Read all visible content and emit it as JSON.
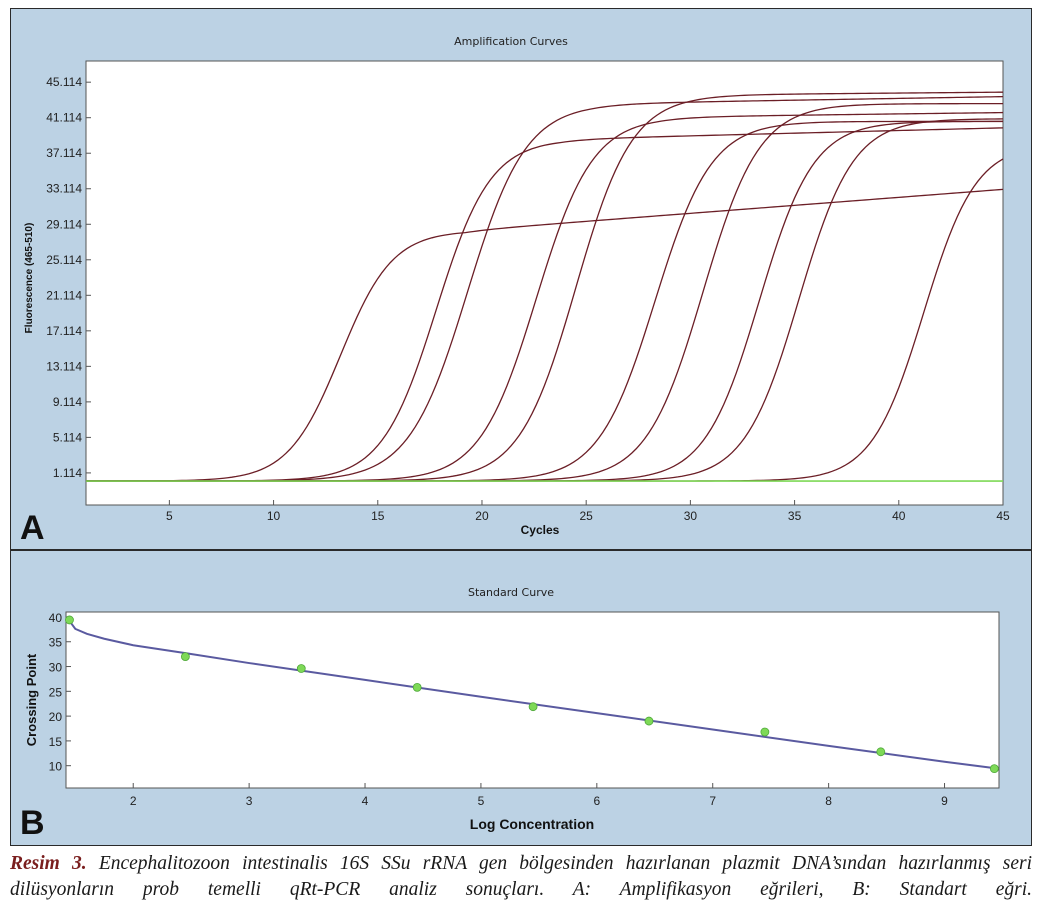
{
  "panels": [
    {
      "letter": "A",
      "chart_data": {
        "type": "line",
        "title": "Amplification Curves",
        "xlabel": "Cycles",
        "ylabel": "Fluorescence (465-510)",
        "xlim": [
          1,
          45
        ],
        "ylim": [
          -2.5,
          47.5
        ],
        "x_ticks": [
          5,
          10,
          15,
          20,
          25,
          30,
          35,
          40,
          45
        ],
        "y_ticks": [
          "1.114",
          "5.114",
          "9.114",
          "13.114",
          "17.114",
          "21.114",
          "25.114",
          "29.114",
          "33.114",
          "37.114",
          "41.114",
          "45.114"
        ],
        "baseline": 0.2,
        "series_model": "sigmoid: baseline + plateau / (1 + exp(-(cycle - midpoint) / slope))",
        "series": [
          {
            "midpoint": 13.2,
            "slope": 1.25,
            "plateau": 28.2,
            "drift": 0.18,
            "color": "#6b1e26"
          },
          {
            "midpoint": 17.8,
            "slope": 1.3,
            "plateau": 38.5,
            "drift": 0.06,
            "color": "#6b1e26"
          },
          {
            "midpoint": 19.3,
            "slope": 1.4,
            "plateau": 42.5,
            "drift": 0.04,
            "color": "#6b1e26"
          },
          {
            "midpoint": 22.6,
            "slope": 1.35,
            "plateau": 41.0,
            "drift": 0.03,
            "color": "#6b1e26"
          },
          {
            "midpoint": 24.5,
            "slope": 1.35,
            "plateau": 43.5,
            "drift": 0.02,
            "color": "#6b1e26"
          },
          {
            "midpoint": 28.3,
            "slope": 1.35,
            "plateau": 40.5,
            "drift": 0.0,
            "color": "#6b1e26"
          },
          {
            "midpoint": 30.6,
            "slope": 1.35,
            "plateau": 42.5,
            "drift": 0.0,
            "color": "#6b1e26"
          },
          {
            "midpoint": 33.3,
            "slope": 1.3,
            "plateau": 40.5,
            "drift": 0.0,
            "color": "#6b1e26"
          },
          {
            "midpoint": 35.2,
            "slope": 1.3,
            "plateau": 40.8,
            "drift": 0.0,
            "color": "#6b1e26"
          },
          {
            "midpoint": 41.2,
            "slope": 1.25,
            "plateau": 38.0,
            "drift": 0.0,
            "color": "#6b1e26"
          },
          {
            "flat": true,
            "y": 0.2,
            "color": "#7ed957"
          }
        ]
      }
    },
    {
      "letter": "B",
      "chart_data": {
        "type": "scatter",
        "title": "Standard Curve",
        "xlabel": "Log Concentration",
        "ylabel": "Crossing Point",
        "xlim": [
          1.42,
          9.47
        ],
        "ylim": [
          5.5,
          41.0
        ],
        "x_ticks": [
          2,
          3,
          4,
          5,
          6,
          7,
          8,
          9
        ],
        "y_ticks": [
          10,
          15,
          20,
          25,
          30,
          35,
          40
        ],
        "points": [
          [
            1.45,
            39.4
          ],
          [
            2.45,
            32.0
          ],
          [
            3.45,
            29.6
          ],
          [
            4.45,
            25.8
          ],
          [
            5.45,
            21.9
          ],
          [
            6.45,
            19.0
          ],
          [
            7.45,
            16.8
          ],
          [
            8.45,
            12.8
          ],
          [
            9.43,
            9.4
          ]
        ],
        "fit_line": [
          [
            1.45,
            39.2
          ],
          [
            1.5,
            37.6
          ],
          [
            1.6,
            36.6
          ],
          [
            1.75,
            35.6
          ],
          [
            2.0,
            34.3
          ],
          [
            2.45,
            32.7
          ],
          [
            3.0,
            30.7
          ],
          [
            4.0,
            27.3
          ],
          [
            5.0,
            23.9
          ],
          [
            6.0,
            20.6
          ],
          [
            7.0,
            17.3
          ],
          [
            8.0,
            14.0
          ],
          [
            9.0,
            10.8
          ],
          [
            9.43,
            9.5
          ]
        ],
        "point_color": "#7ed957",
        "line_color": "#5a5aa0"
      }
    }
  ],
  "caption": {
    "label": "Resim 3.",
    "text": " Encephalitozoon intestinalis 16S SSu rRNA gen bölgesinden hazırlanan plazmit DNA’sından hazırlanmış seri dilüsyonların prob temelli qRt-PCR analiz sonuçları. A: Amplifikasyon eğrileri, B: Standart eğri."
  }
}
